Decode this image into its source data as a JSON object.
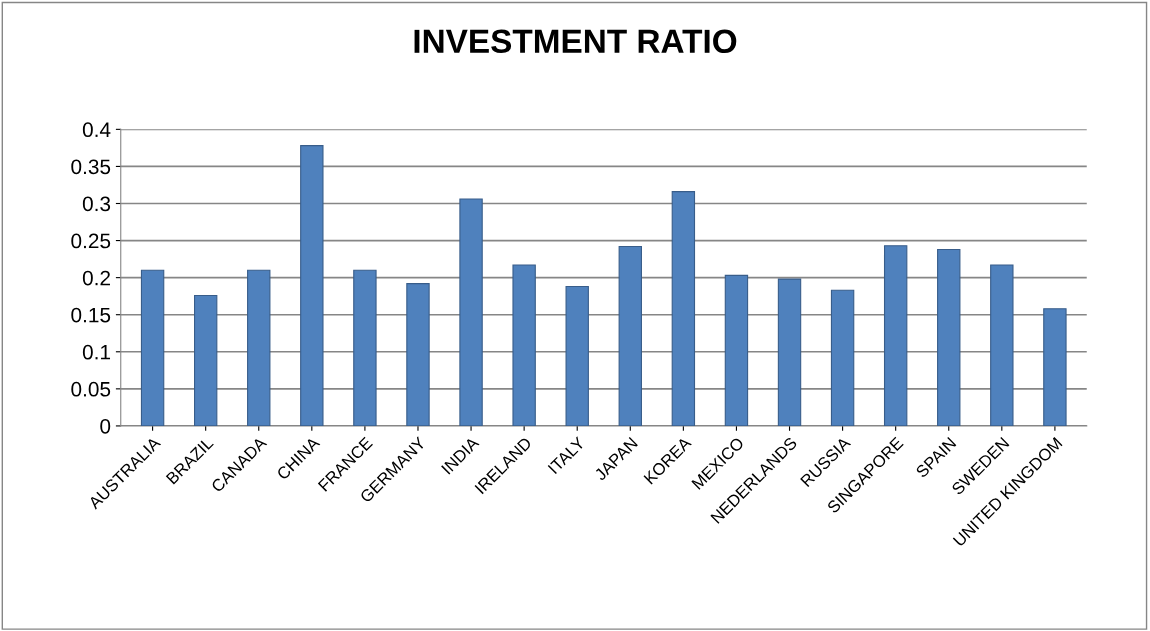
{
  "chart_data": {
    "type": "bar",
    "title": "INVESTMENT RATIO",
    "categories": [
      "AUSTRALIA",
      "BRAZIL",
      "CANADA",
      "CHINA",
      "FRANCE",
      "GERMANY",
      "INDIA",
      "IRELAND",
      "ITALY",
      "JAPAN",
      "KOREA",
      "MEXICO",
      "NEDERLANDS",
      "RUSSIA",
      "SINGAPORE",
      "SPAIN",
      "SWEDEN",
      "UNITED KINGDOM"
    ],
    "values": [
      0.21,
      0.176,
      0.21,
      0.378,
      0.21,
      0.192,
      0.306,
      0.217,
      0.188,
      0.242,
      0.316,
      0.203,
      0.198,
      0.183,
      0.243,
      0.238,
      0.217,
      0.158
    ],
    "color": "#4f81bd",
    "ylim": [
      0,
      0.4
    ],
    "yticks": [
      0,
      0.05,
      0.1,
      0.15,
      0.2,
      0.25,
      0.3,
      0.35,
      0.4
    ],
    "grid": "y",
    "legend": false
  }
}
